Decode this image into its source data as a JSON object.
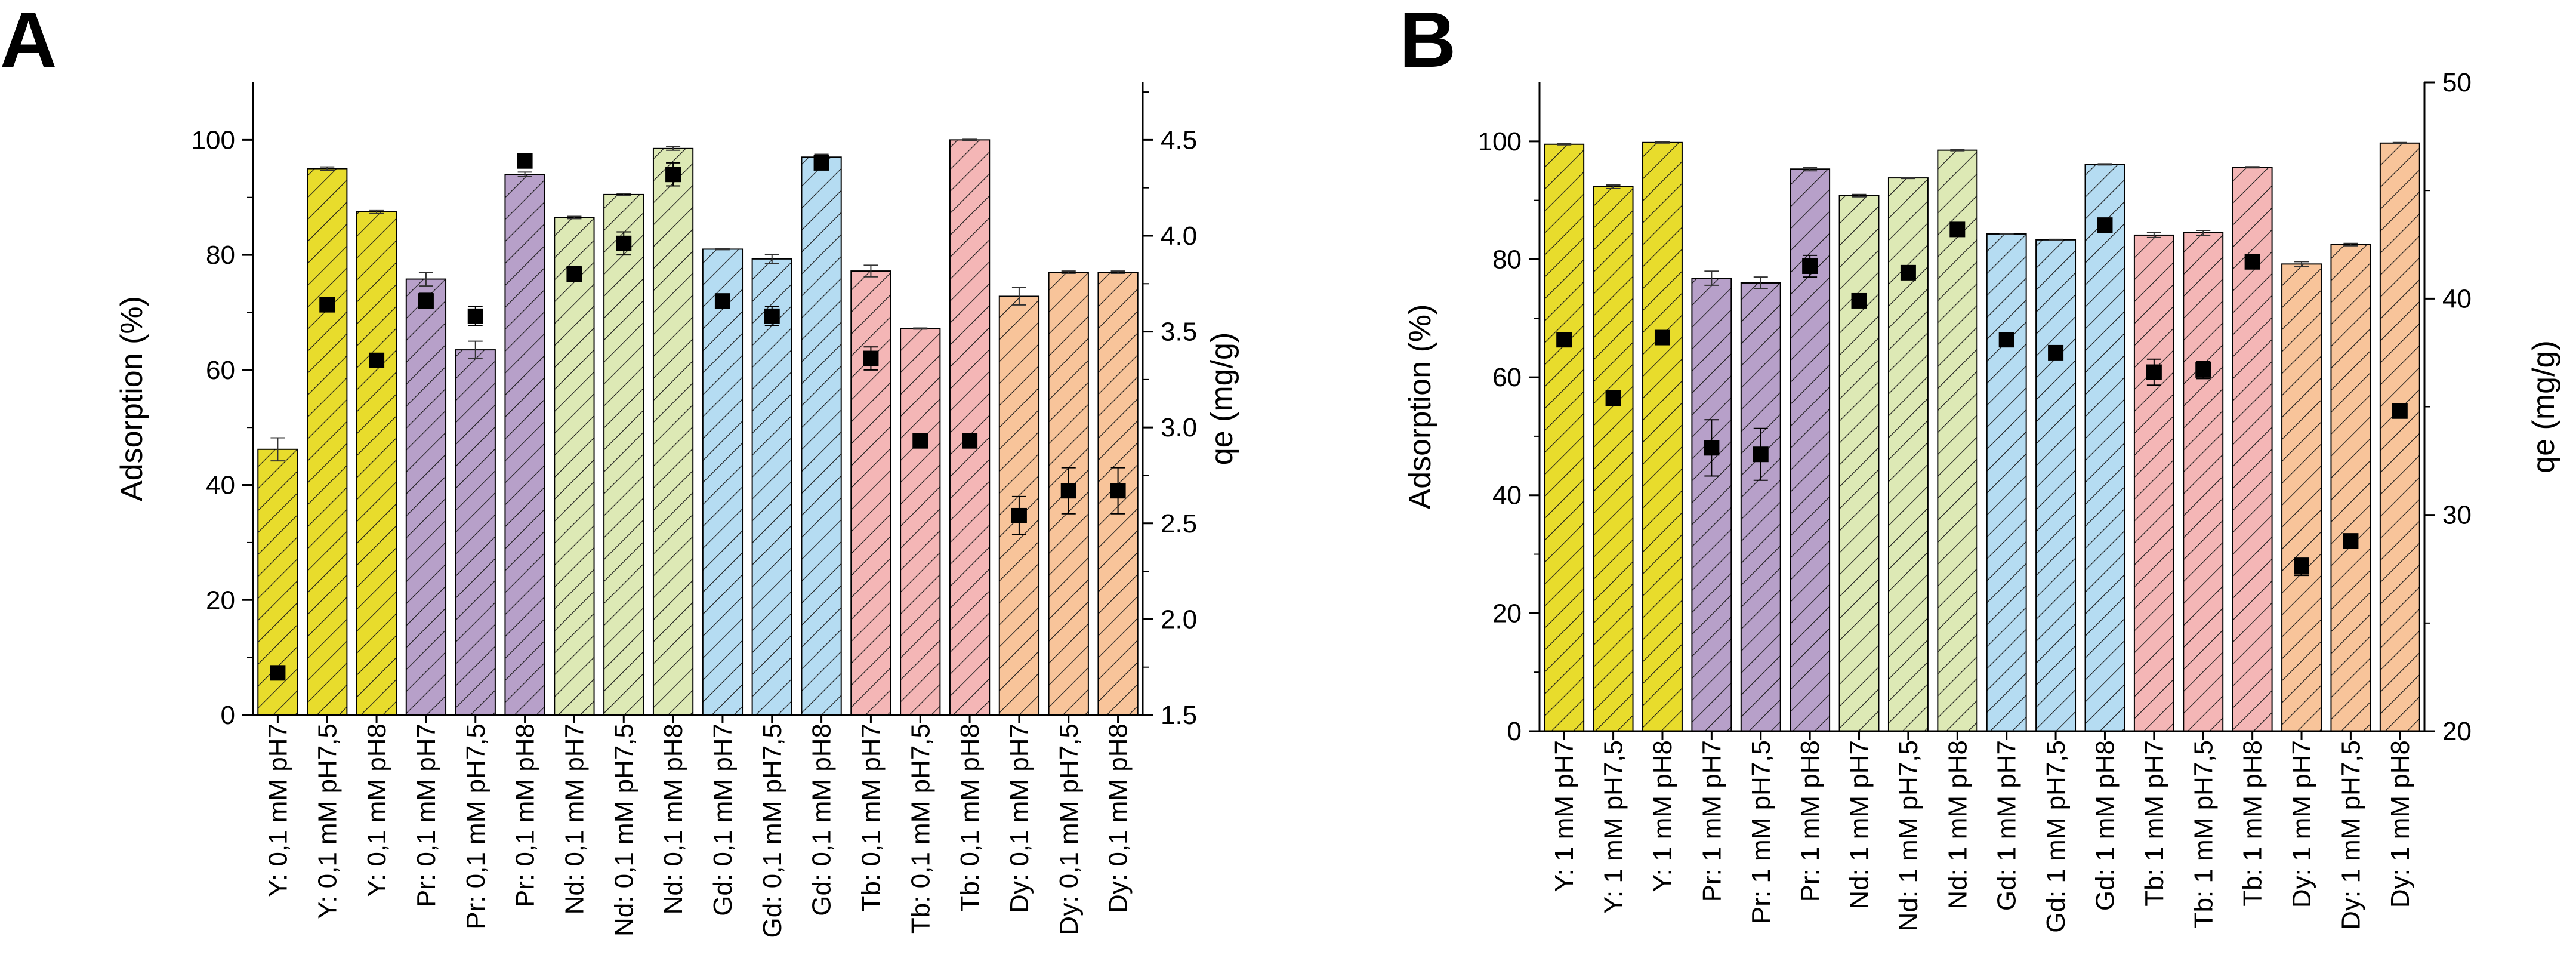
{
  "colors": {
    "Y": "#e8dc2c",
    "Pr": "#b7a0c9",
    "Nd": "#dde9b5",
    "Gd": "#b5dcf2",
    "Tb": "#f4b6b6",
    "Dy": "#f8c49a",
    "hatch": "#1a1a1a",
    "axis": "#000000"
  },
  "chart_data": [
    {
      "panel_label": "A",
      "type": "bar",
      "title": "",
      "xlabel": "",
      "ylabel": "Adsorption (%)",
      "y2label": "qe (mg/g)",
      "ylim": [
        0,
        110
      ],
      "y2lim": [
        1.5,
        4.8
      ],
      "yticks": [
        0,
        20,
        40,
        60,
        80,
        100
      ],
      "y2ticks": [
        1.5,
        2.0,
        2.5,
        3.0,
        3.5,
        4.0,
        4.5
      ],
      "yticklabels": [
        "0",
        "20",
        "40",
        "60",
        "80",
        "100"
      ],
      "y2ticklabels": [
        "1.5",
        "2.0",
        "2.5",
        "3.0",
        "3.5",
        "4.0",
        "4.5"
      ],
      "categories": [
        "Y: 0,1 mM pH7",
        "Y: 0,1 mM pH7,5",
        "Y: 0,1 mM pH8",
        "Pr: 0,1 mM pH7",
        "Pr: 0,1 mM pH7,5",
        "Pr: 0,1 mM pH8",
        "Nd: 0,1 mM pH7",
        "Nd: 0,1 mM pH7,5",
        "Nd: 0,1 mM pH8",
        "Gd: 0,1 mM pH7",
        "Gd: 0,1 mM pH7,5",
        "Gd: 0,1 mM pH8",
        "Tb: 0,1 mM pH7",
        "Tb: 0,1 mM pH7,5",
        "Tb: 0,1 mM pH8",
        "Dy: 0,1 mM pH7",
        "Dy: 0,1 mM pH7,5",
        "Dy: 0,1 mM pH8"
      ],
      "elements": [
        "Y",
        "Y",
        "Y",
        "Pr",
        "Pr",
        "Pr",
        "Nd",
        "Nd",
        "Nd",
        "Gd",
        "Gd",
        "Gd",
        "Tb",
        "Tb",
        "Tb",
        "Dy",
        "Dy",
        "Dy"
      ],
      "series": [
        {
          "name": "Adsorption (%)",
          "axis": "left",
          "kind": "bar",
          "values": [
            46.2,
            95.0,
            87.5,
            75.8,
            63.5,
            94.0,
            86.5,
            90.5,
            98.5,
            81.0,
            79.3,
            97.0,
            77.2,
            67.2,
            100.0,
            72.8,
            77.0,
            77.0
          ],
          "errors": [
            2.0,
            0.3,
            0.3,
            1.2,
            1.5,
            0.4,
            0.2,
            0.2,
            0.3,
            0.1,
            0.8,
            0.5,
            1.0,
            0.1,
            0.1,
            1.5,
            0.2,
            0.2
          ]
        },
        {
          "name": "qe (mg/g)",
          "axis": "right",
          "kind": "scatter",
          "values": [
            1.72,
            3.64,
            3.35,
            3.66,
            3.58,
            4.39,
            3.8,
            3.96,
            4.32,
            3.66,
            3.58,
            4.38,
            3.36,
            2.93,
            2.93,
            2.54,
            2.67,
            2.67
          ],
          "errors": [
            0.03,
            0.02,
            0.03,
            0.04,
            0.05,
            0.03,
            0.04,
            0.06,
            0.06,
            0.02,
            0.05,
            0.03,
            0.06,
            0.01,
            0.01,
            0.1,
            0.12,
            0.12
          ]
        }
      ]
    },
    {
      "panel_label": "B",
      "type": "bar",
      "title": "",
      "xlabel": "",
      "ylabel": "Adsorption (%)",
      "y2label": "qe (mg/g)",
      "ylim": [
        0,
        110
      ],
      "y2lim": [
        20,
        50
      ],
      "yticks": [
        0,
        20,
        40,
        60,
        80,
        100
      ],
      "y2ticks": [
        20,
        30,
        40,
        50
      ],
      "yticklabels": [
        "0",
        "20",
        "40",
        "60",
        "80",
        "100"
      ],
      "y2ticklabels": [
        "20",
        "30",
        "40",
        "50"
      ],
      "categories": [
        "Y: 1 mM pH7",
        "Y: 1 mM pH7,5",
        "Y: 1 mM pH8",
        "Pr: 1 mM pH7",
        "Pr: 1 mM pH7,5",
        "Pr: 1 mM pH8",
        "Nd: 1 mM pH7",
        "Nd: 1 mM pH7,5",
        "Nd: 1 mM pH8",
        "Gd: 1 mM pH7",
        "Gd: 1 mM pH7,5",
        "Gd: 1 mM pH8",
        "Tb: 1 mM pH7",
        "Tb: 1 mM pH7,5",
        "Tb: 1 mM pH8",
        "Dy: 1 mM pH7",
        "Dy: 1 mM pH7,5",
        "Dy: 1 mM pH8"
      ],
      "elements": [
        "Y",
        "Y",
        "Y",
        "Pr",
        "Pr",
        "Pr",
        "Nd",
        "Nd",
        "Nd",
        "Gd",
        "Gd",
        "Gd",
        "Tb",
        "Tb",
        "Tb",
        "Dy",
        "Dy",
        "Dy"
      ],
      "series": [
        {
          "name": "Adsorption (%)",
          "axis": "left",
          "kind": "bar",
          "values": [
            99.5,
            92.3,
            99.8,
            76.8,
            76.0,
            95.3,
            90.8,
            93.8,
            98.5,
            84.3,
            83.3,
            96.1,
            84.1,
            84.5,
            95.6,
            79.2,
            82.5,
            99.7
          ],
          "errors": [
            0.1,
            0.3,
            0.1,
            1.2,
            1.0,
            0.3,
            0.2,
            0.1,
            0.1,
            0.1,
            0.1,
            0.1,
            0.4,
            0.4,
            0.1,
            0.4,
            0.2,
            0.1
          ]
        },
        {
          "name": "qe (mg/g)",
          "axis": "right",
          "kind": "scatter",
          "values": [
            38.1,
            35.4,
            38.2,
            33.1,
            32.8,
            41.5,
            39.9,
            41.2,
            43.2,
            38.1,
            37.5,
            43.4,
            36.6,
            36.7,
            41.7,
            27.6,
            28.8,
            34.8
          ],
          "errors": [
            0.2,
            0.2,
            0.2,
            1.3,
            1.2,
            0.5,
            0.2,
            0.2,
            0.2,
            0.1,
            0.1,
            0.1,
            0.6,
            0.4,
            0.2,
            0.4,
            0.2,
            0.2
          ]
        }
      ]
    }
  ]
}
